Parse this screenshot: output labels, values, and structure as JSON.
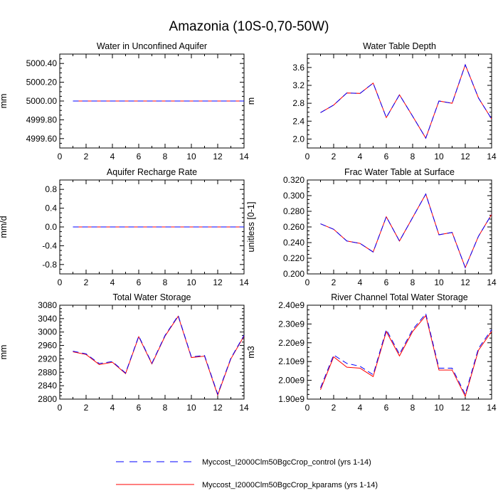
{
  "figure": {
    "title": "Amazonia (10S-0,70-50W)"
  },
  "legend": {
    "placement": "bottom",
    "entries": [
      {
        "name": "Myccost_I2000Clm50BgcCrop_control (yrs 1-14)",
        "color": "#0000ff",
        "dash": "dashed"
      },
      {
        "name": "Myccost_I2000Clm50BgcCrop_kparams (yrs 1-14)",
        "color": "#ff0000",
        "dash": "solid"
      }
    ]
  },
  "chart_data": [
    {
      "type": "line",
      "title": "Water in Unconfined Aquifer",
      "xlabel": "",
      "ylabel": "mm",
      "xlim": [
        0,
        14
      ],
      "ylim": [
        4999.5,
        5000.5
      ],
      "xticks": [
        0,
        2,
        4,
        6,
        8,
        10,
        12,
        14
      ],
      "yticks": [
        4999.6,
        4999.8,
        5000.0,
        5000.2,
        5000.4
      ],
      "ytick_labels": [
        "4999.60",
        "4999.80",
        "5000.00",
        "5000.20",
        "5000.40"
      ],
      "grid": false,
      "x": [
        1,
        2,
        3,
        4,
        5,
        6,
        7,
        8,
        9,
        10,
        11,
        12,
        13,
        14
      ],
      "series": [
        {
          "name": "Myccost_I2000Clm50BgcCrop_control (yrs 1-14)",
          "values": [
            5000,
            5000,
            5000,
            5000,
            5000,
            5000,
            5000,
            5000,
            5000,
            5000,
            5000,
            5000,
            5000,
            5000
          ]
        },
        {
          "name": "Myccost_I2000Clm50BgcCrop_kparams (yrs 1-14)",
          "values": [
            5000,
            5000,
            5000,
            5000,
            5000,
            5000,
            5000,
            5000,
            5000,
            5000,
            5000,
            5000,
            5000,
            5000
          ]
        }
      ]
    },
    {
      "type": "line",
      "title": "Water Table Depth",
      "xlabel": "",
      "ylabel": "m",
      "xlim": [
        0,
        14
      ],
      "ylim": [
        1.8,
        3.9
      ],
      "xticks": [
        0,
        2,
        4,
        6,
        8,
        10,
        12,
        14
      ],
      "yticks": [
        2.0,
        2.4,
        2.8,
        3.2,
        3.6
      ],
      "ytick_labels": [
        "2.0",
        "2.4",
        "2.8",
        "3.2",
        "3.6"
      ],
      "grid": false,
      "x": [
        1,
        2,
        3,
        4,
        5,
        6,
        7,
        8,
        9,
        10,
        11,
        12,
        13,
        14
      ],
      "series": [
        {
          "name": "Myccost_I2000Clm50BgcCrop_control (yrs 1-14)",
          "values": [
            2.59,
            2.76,
            3.03,
            3.02,
            3.25,
            2.48,
            2.99,
            2.51,
            2.02,
            2.85,
            2.8,
            3.66,
            2.92,
            2.45
          ]
        },
        {
          "name": "Myccost_I2000Clm50BgcCrop_kparams (yrs 1-14)",
          "values": [
            2.59,
            2.76,
            3.03,
            3.02,
            3.25,
            2.48,
            2.99,
            2.51,
            2.02,
            2.85,
            2.8,
            3.66,
            2.92,
            2.45
          ]
        }
      ]
    },
    {
      "type": "line",
      "title": "Aquifer Recharge Rate",
      "xlabel": "",
      "ylabel": "mm/d",
      "xlim": [
        0,
        14
      ],
      "ylim": [
        -1.0,
        1.0
      ],
      "xticks": [
        0,
        2,
        4,
        6,
        8,
        10,
        12,
        14
      ],
      "yticks": [
        -0.8,
        -0.4,
        0.0,
        0.4,
        0.8
      ],
      "ytick_labels": [
        "-0.8",
        "-0.4",
        "0.0",
        "0.4",
        "0.8"
      ],
      "grid": false,
      "x": [
        1,
        2,
        3,
        4,
        5,
        6,
        7,
        8,
        9,
        10,
        11,
        12,
        13,
        14
      ],
      "series": [
        {
          "name": "Myccost_I2000Clm50BgcCrop_control (yrs 1-14)",
          "values": [
            0,
            0,
            0,
            0,
            0,
            0,
            0,
            0,
            0,
            0,
            0,
            0,
            0,
            0
          ]
        },
        {
          "name": "Myccost_I2000Clm50BgcCrop_kparams (yrs 1-14)",
          "values": [
            0,
            0,
            0,
            0,
            0,
            0,
            0,
            0,
            0,
            0,
            0,
            0,
            0,
            0
          ]
        }
      ]
    },
    {
      "type": "line",
      "title": "Frac Water Table at Surface",
      "xlabel": "",
      "ylabel": "unitless [0-1]",
      "xlim": [
        0,
        14
      ],
      "ylim": [
        0.2,
        0.32
      ],
      "xticks": [
        0,
        2,
        4,
        6,
        8,
        10,
        12,
        14
      ],
      "yticks": [
        0.2,
        0.22,
        0.24,
        0.26,
        0.28,
        0.3,
        0.32
      ],
      "ytick_labels": [
        "0.200",
        "0.220",
        "0.240",
        "0.260",
        "0.280",
        "0.300",
        "0.320"
      ],
      "grid": false,
      "x": [
        1,
        2,
        3,
        4,
        5,
        6,
        7,
        8,
        9,
        10,
        11,
        12,
        13,
        14
      ],
      "series": [
        {
          "name": "Myccost_I2000Clm50BgcCrop_control (yrs 1-14)",
          "values": [
            0.264,
            0.257,
            0.242,
            0.239,
            0.228,
            0.273,
            0.242,
            0.272,
            0.302,
            0.25,
            0.253,
            0.208,
            0.248,
            0.276
          ]
        },
        {
          "name": "Myccost_I2000Clm50BgcCrop_kparams (yrs 1-14)",
          "values": [
            0.264,
            0.257,
            0.242,
            0.239,
            0.228,
            0.273,
            0.242,
            0.272,
            0.302,
            0.25,
            0.253,
            0.208,
            0.248,
            0.276
          ]
        }
      ]
    },
    {
      "type": "line",
      "title": "Total Water Storage",
      "xlabel": "",
      "ylabel": "mm",
      "xlim": [
        0,
        14
      ],
      "ylim": [
        2800,
        3080
      ],
      "xticks": [
        0,
        2,
        4,
        6,
        8,
        10,
        12,
        14
      ],
      "yticks": [
        2800,
        2840,
        2880,
        2920,
        2960,
        3000,
        3040,
        3080
      ],
      "ytick_labels": [
        "2800",
        "2840",
        "2880",
        "2920",
        "2960",
        "3000",
        "3040",
        "3080"
      ],
      "grid": false,
      "x": [
        1,
        2,
        3,
        4,
        5,
        6,
        7,
        8,
        9,
        10,
        11,
        12,
        13,
        14
      ],
      "series": [
        {
          "name": "Myccost_I2000Clm50BgcCrop_control (yrs 1-14)",
          "values": [
            2943,
            2935,
            2906,
            2912,
            2878,
            2988,
            2907,
            2990,
            3049,
            2926,
            2930,
            2815,
            2922,
            2990
          ]
        },
        {
          "name": "Myccost_I2000Clm50BgcCrop_kparams (yrs 1-14)",
          "values": [
            2941,
            2933,
            2903,
            2910,
            2876,
            2986,
            2905,
            2988,
            3047,
            2924,
            2928,
            2812,
            2920,
            2988
          ]
        }
      ]
    },
    {
      "type": "line",
      "title": "River Channel Total Water Storage",
      "xlabel": "",
      "ylabel": "m3",
      "xlim": [
        0,
        14
      ],
      "ylim": [
        1900000000.0,
        2400000000.0
      ],
      "xticks": [
        0,
        2,
        4,
        6,
        8,
        10,
        12,
        14
      ],
      "yticks": [
        1900000000.0,
        2000000000.0,
        2100000000.0,
        2200000000.0,
        2300000000.0,
        2400000000.0
      ],
      "ytick_labels": [
        "1.90e9",
        "2.00e9",
        "2.10e9",
        "2.20e9",
        "2.30e9",
        "2.40e9"
      ],
      "grid": false,
      "x": [
        1,
        2,
        3,
        4,
        5,
        6,
        7,
        8,
        9,
        10,
        11,
        12,
        13,
        14
      ],
      "series": [
        {
          "name": "Myccost_I2000Clm50BgcCrop_control (yrs 1-14)",
          "values": [
            1960000000.0,
            2135000000.0,
            2090000000.0,
            2075000000.0,
            2030000000.0,
            2270000000.0,
            2140000000.0,
            2270000000.0,
            2355000000.0,
            2065000000.0,
            2065000000.0,
            1925000000.0,
            2170000000.0,
            2270000000.0
          ]
        },
        {
          "name": "Myccost_I2000Clm50BgcCrop_kparams (yrs 1-14)",
          "values": [
            1950000000.0,
            2125000000.0,
            2070000000.0,
            2065000000.0,
            2020000000.0,
            2260000000.0,
            2130000000.0,
            2260000000.0,
            2345000000.0,
            2055000000.0,
            2055000000.0,
            1915000000.0,
            2160000000.0,
            2260000000.0
          ]
        }
      ]
    }
  ]
}
